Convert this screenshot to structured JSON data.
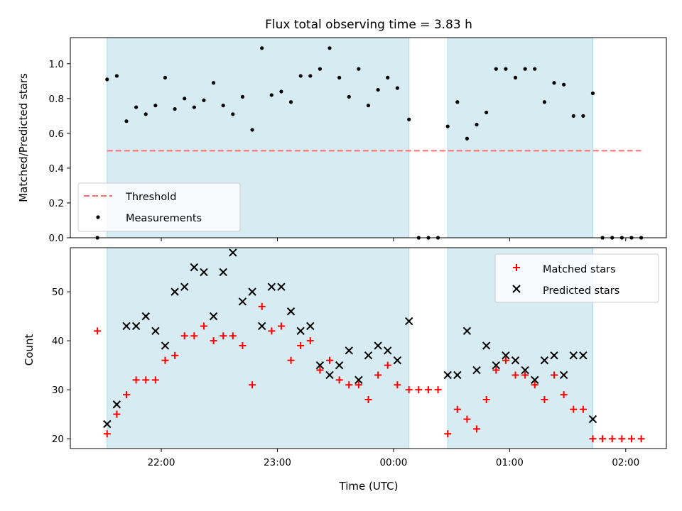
{
  "chart_data": [
    {
      "type": "scatter",
      "title": "Flux total observing time = 3.83 h",
      "ylabel": "Matched/Predicted stars",
      "xlabel": "",
      "x_unit": "hours UTC",
      "xlim": [
        "21:13",
        "02:21"
      ],
      "ylim": [
        0,
        1.15
      ],
      "yticks": [
        0.0,
        0.2,
        0.4,
        0.6,
        0.8,
        1.0
      ],
      "ytick_labels": [
        "0.0",
        "0.2",
        "0.4",
        "0.6",
        "0.8",
        "1.0"
      ],
      "xticks": [
        "22:00",
        "23:00",
        "00:00",
        "01:00",
        "02:00"
      ],
      "shaded_intervals": [
        [
          "21:32",
          "00:08"
        ],
        [
          "00:28",
          "01:43"
        ]
      ],
      "shade_color": "#add8e6",
      "legend_position": "lower left",
      "series": [
        {
          "name": "Threshold",
          "style": "dashed-line",
          "color": "#ff6e6e",
          "x": [
            "21:32",
            "02:08"
          ],
          "y": [
            0.5,
            0.5
          ]
        },
        {
          "name": "Measurements",
          "style": "dot",
          "color": "#000000",
          "x": [
            "21:27",
            "21:32",
            "21:37",
            "21:42",
            "21:47",
            "21:52",
            "21:57",
            "22:02",
            "22:07",
            "22:12",
            "22:17",
            "22:22",
            "22:27",
            "22:32",
            "22:37",
            "22:42",
            "22:47",
            "22:52",
            "22:57",
            "23:02",
            "23:07",
            "23:12",
            "23:17",
            "23:22",
            "23:27",
            "23:32",
            "23:37",
            "23:42",
            "23:47",
            "23:52",
            "23:57",
            "00:02",
            "00:08",
            "00:13",
            "00:18",
            "00:23",
            "00:28",
            "00:33",
            "00:38",
            "00:43",
            "00:48",
            "00:53",
            "00:58",
            "01:03",
            "01:08",
            "01:13",
            "01:18",
            "01:23",
            "01:28",
            "01:33",
            "01:38",
            "01:43",
            "01:48",
            "01:53",
            "01:58",
            "02:03",
            "02:08"
          ],
          "y": [
            0.0,
            0.91,
            0.93,
            0.67,
            0.75,
            0.71,
            0.76,
            0.92,
            0.74,
            0.8,
            0.75,
            0.79,
            0.89,
            0.76,
            0.71,
            0.81,
            0.62,
            1.09,
            0.82,
            0.84,
            0.78,
            0.93,
            0.93,
            0.97,
            1.09,
            0.92,
            0.81,
            0.97,
            0.76,
            0.85,
            0.92,
            0.86,
            0.68,
            0.0,
            0.0,
            0.0,
            0.64,
            0.78,
            0.57,
            0.65,
            0.72,
            0.97,
            0.97,
            0.92,
            0.97,
            0.97,
            0.78,
            0.89,
            0.88,
            0.7,
            0.7,
            0.83,
            0.0,
            0.0,
            0.0,
            0.0,
            0.0
          ]
        }
      ]
    },
    {
      "type": "scatter",
      "title": "",
      "ylabel": "Count",
      "xlabel": "Time (UTC)",
      "x_unit": "hours UTC",
      "xlim": [
        "21:13",
        "02:21"
      ],
      "ylim": [
        18,
        59
      ],
      "yticks": [
        20,
        30,
        40,
        50
      ],
      "ytick_labels": [
        "20",
        "30",
        "40",
        "50"
      ],
      "xticks": [
        "22:00",
        "23:00",
        "00:00",
        "01:00",
        "02:00"
      ],
      "xtick_labels": [
        "22:00",
        "23:00",
        "00:00",
        "01:00",
        "02:00"
      ],
      "shaded_intervals": [
        [
          "21:32",
          "00:08"
        ],
        [
          "00:28",
          "01:43"
        ]
      ],
      "shade_color": "#add8e6",
      "legend_position": "upper right",
      "series": [
        {
          "name": "Matched stars",
          "style": "plus",
          "color": "#ff0000",
          "x": [
            "21:27",
            "21:32",
            "21:37",
            "21:42",
            "21:47",
            "21:52",
            "21:57",
            "22:02",
            "22:07",
            "22:12",
            "22:17",
            "22:22",
            "22:27",
            "22:32",
            "22:37",
            "22:42",
            "22:47",
            "22:52",
            "22:57",
            "23:02",
            "23:07",
            "23:12",
            "23:17",
            "23:22",
            "23:27",
            "23:32",
            "23:37",
            "23:42",
            "23:47",
            "23:52",
            "23:57",
            "00:02",
            "00:08",
            "00:13",
            "00:18",
            "00:23",
            "00:28",
            "00:33",
            "00:38",
            "00:43",
            "00:48",
            "00:53",
            "00:58",
            "01:03",
            "01:08",
            "01:13",
            "01:18",
            "01:23",
            "01:28",
            "01:33",
            "01:38",
            "01:43",
            "01:48",
            "01:53",
            "01:58",
            "02:03",
            "02:08"
          ],
          "y": [
            42,
            21,
            25,
            29,
            32,
            32,
            32,
            36,
            37,
            41,
            41,
            43,
            40,
            41,
            41,
            39,
            31,
            47,
            42,
            43,
            36,
            39,
            40,
            34,
            36,
            32,
            31,
            31,
            28,
            33,
            35,
            31,
            30,
            30,
            30,
            30,
            21,
            26,
            24,
            22,
            28,
            34,
            36,
            33,
            33,
            31,
            28,
            33,
            29,
            26,
            26,
            20,
            20,
            20,
            20,
            20,
            20
          ]
        },
        {
          "name": "Predicted stars",
          "style": "x",
          "color": "#000000",
          "x": [
            "21:32",
            "21:37",
            "21:42",
            "21:47",
            "21:52",
            "21:57",
            "22:02",
            "22:07",
            "22:12",
            "22:17",
            "22:22",
            "22:27",
            "22:32",
            "22:37",
            "22:42",
            "22:47",
            "22:52",
            "22:57",
            "23:02",
            "23:07",
            "23:12",
            "23:17",
            "23:22",
            "23:27",
            "23:32",
            "23:37",
            "23:42",
            "23:47",
            "23:52",
            "23:57",
            "00:02",
            "00:08",
            "00:28",
            "00:33",
            "00:38",
            "00:43",
            "00:48",
            "00:53",
            "00:58",
            "01:03",
            "01:08",
            "01:13",
            "01:18",
            "01:23",
            "01:28",
            "01:33",
            "01:38",
            "01:43"
          ],
          "y": [
            23,
            27,
            43,
            43,
            45,
            42,
            39,
            50,
            51,
            55,
            54,
            45,
            54,
            58,
            48,
            50,
            43,
            51,
            51,
            46,
            42,
            43,
            35,
            33,
            35,
            38,
            32,
            37,
            39,
            38,
            36,
            44,
            33,
            33,
            42,
            34,
            39,
            35,
            37,
            36,
            34,
            32,
            36,
            37,
            33,
            37,
            37,
            24
          ]
        }
      ]
    }
  ]
}
